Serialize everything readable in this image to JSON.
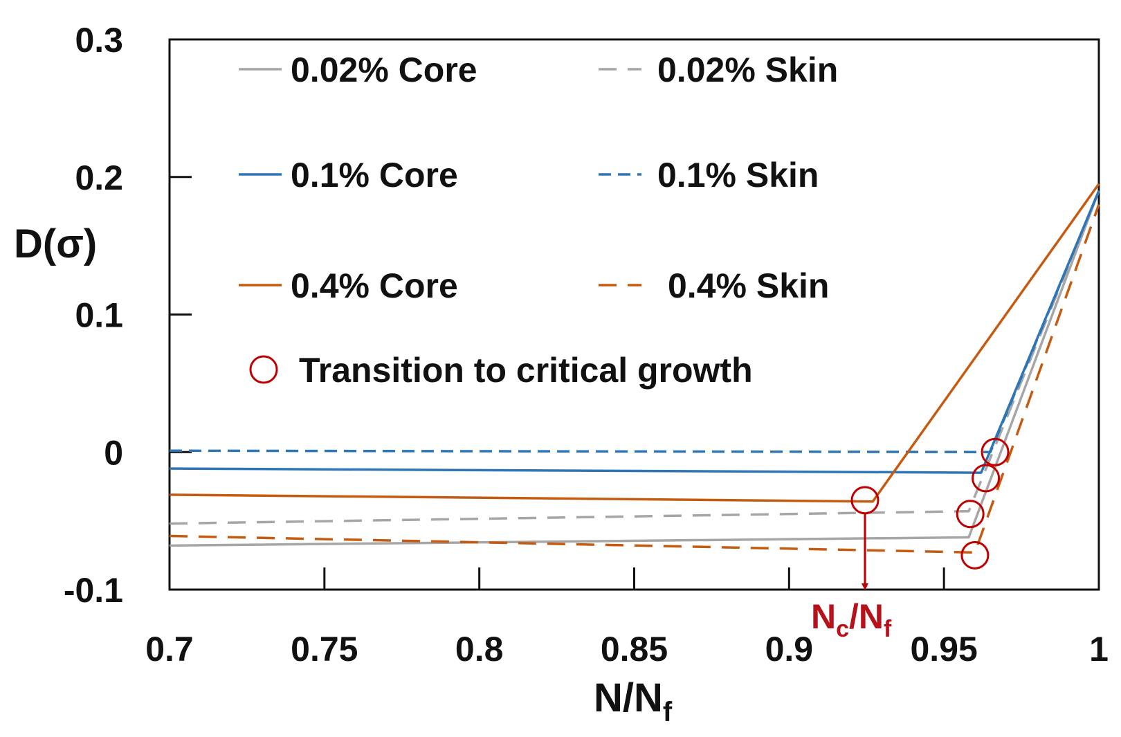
{
  "chart_data": {
    "type": "line",
    "title": "",
    "xlabel": "N/N",
    "xlabel_sub": "f",
    "ylabel": "D(σ)",
    "xlim": [
      0.7,
      1.0
    ],
    "ylim": [
      -0.1,
      0.3
    ],
    "x_ticks": [
      "0.7",
      "0.75",
      "0.8",
      "0.85",
      "0.9",
      "0.95",
      "1"
    ],
    "y_ticks": [
      "-0.1",
      "0",
      "0.1",
      "0.2",
      "0.3"
    ],
    "grid": false,
    "legend_position": "top-left",
    "series": [
      {
        "name": "0.02% Core",
        "color": "#a6a6a6",
        "style": "solid",
        "x": [
          0.7,
          0.958,
          1.0
        ],
        "y": [
          -0.068,
          -0.062,
          0.19
        ]
      },
      {
        "name": "0.02% Skin",
        "color": "#a6a6a6",
        "style": "dashed",
        "x": [
          0.7,
          0.958,
          1.0
        ],
        "y": [
          -0.052,
          -0.043,
          0.19
        ]
      },
      {
        "name": "0.1% Core",
        "color": "#2e75b6",
        "style": "solid",
        "x": [
          0.7,
          0.962,
          1.0
        ],
        "y": [
          -0.012,
          -0.015,
          0.19
        ]
      },
      {
        "name": "0.1% Skin",
        "color": "#2e75b6",
        "style": "dashed",
        "x": [
          0.7,
          0.965,
          1.0
        ],
        "y": [
          0.001,
          0.0,
          0.19
        ]
      },
      {
        "name": "0.4% Core",
        "color": "#c55a11",
        "style": "solid",
        "x": [
          0.7,
          0.927,
          1.0
        ],
        "y": [
          -0.031,
          -0.036,
          0.195
        ]
      },
      {
        "name": "0.4% Skin",
        "color": "#c55a11",
        "style": "dashed",
        "x": [
          0.7,
          0.96,
          1.0
        ],
        "y": [
          -0.061,
          -0.073,
          0.18
        ]
      }
    ],
    "transition_points": {
      "label": "Transition to critical growth",
      "color": "#c00000",
      "points": [
        {
          "x": 0.9245,
          "y": -0.035
        },
        {
          "x": 0.9665,
          "y": 0.0
        },
        {
          "x": 0.9635,
          "y": -0.019
        },
        {
          "x": 0.9585,
          "y": -0.045
        },
        {
          "x": 0.96,
          "y": -0.075
        }
      ]
    },
    "annotation": {
      "text": "N",
      "sub1": "c",
      "slash": "/N",
      "sub2": "f",
      "x": 0.9245
    }
  }
}
